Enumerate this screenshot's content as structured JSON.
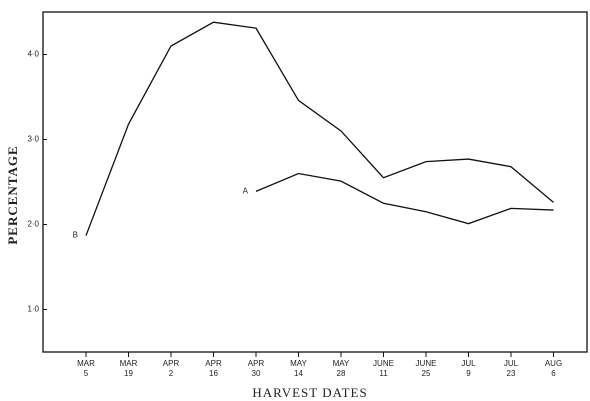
{
  "chart_data": {
    "type": "line",
    "ylabel": "PERCENTAGE",
    "xlabel": "HARVEST DATES",
    "categories": [
      [
        "MAR",
        "5"
      ],
      [
        "MAR",
        "19"
      ],
      [
        "APR",
        "2"
      ],
      [
        "APR",
        "16"
      ],
      [
        "APR",
        "30"
      ],
      [
        "MAY",
        "14"
      ],
      [
        "MAY",
        "28"
      ],
      [
        "JUNE",
        "11"
      ],
      [
        "JUNE",
        "25"
      ],
      [
        "JUL",
        "9"
      ],
      [
        "JUL",
        "23"
      ],
      [
        "AUG",
        "6"
      ]
    ],
    "series": [
      {
        "name": "A",
        "color": "#111111",
        "values": [
          null,
          null,
          null,
          null,
          2.39,
          2.6,
          2.51,
          2.25,
          2.15,
          2.01,
          2.19,
          2.17
        ]
      },
      {
        "name": "B",
        "color": "#111111",
        "values": [
          1.87,
          3.18,
          4.1,
          4.38,
          4.31,
          3.46,
          3.1,
          2.55,
          2.74,
          2.77,
          2.68,
          2.26
        ]
      }
    ],
    "ylim": [
      0.5,
      4.5
    ],
    "yticks": [
      {
        "value": 1,
        "label": "1·0"
      },
      {
        "value": 2,
        "label": "2·0"
      },
      {
        "value": 3,
        "label": "3·0"
      },
      {
        "value": 4,
        "label": "4·0"
      }
    ],
    "grid": false
  }
}
